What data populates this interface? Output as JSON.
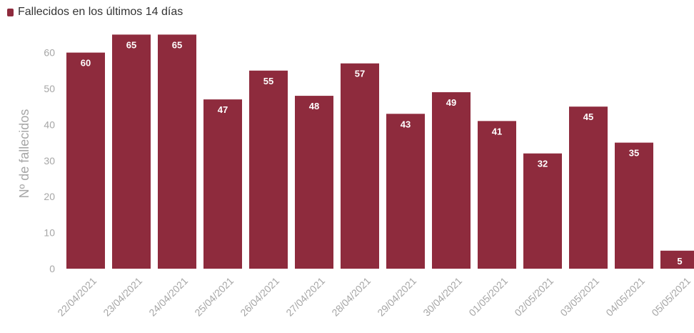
{
  "legend": {
    "label": "Fallecidos en los últimos 14 días"
  },
  "colors": {
    "bar": "#8e2b3d",
    "axis_text": "#a6a6a6",
    "label_text": "#ffffff"
  },
  "chart_data": {
    "type": "bar",
    "categories": [
      "22/04/2021",
      "23/04/2021",
      "24/04/2021",
      "25/04/2021",
      "26/04/2021",
      "27/04/2021",
      "28/04/2021",
      "29/04/2021",
      "30/04/2021",
      "01/05/2021",
      "02/05/2021",
      "03/05/2021",
      "04/05/2021",
      "05/05/2021"
    ],
    "series": [
      {
        "name": "Fallecidos en los últimos 14 días",
        "values": [
          60,
          65,
          65,
          47,
          55,
          48,
          57,
          43,
          49,
          41,
          32,
          45,
          35,
          5
        ]
      }
    ],
    "ylabel": "Nº de fallecidos",
    "xlabel": "",
    "ylim": [
      0,
      65
    ],
    "yticks": [
      0,
      10,
      20,
      30,
      40,
      50,
      60
    ],
    "grid": false,
    "legend_position": "top-left",
    "data_labels": true
  }
}
